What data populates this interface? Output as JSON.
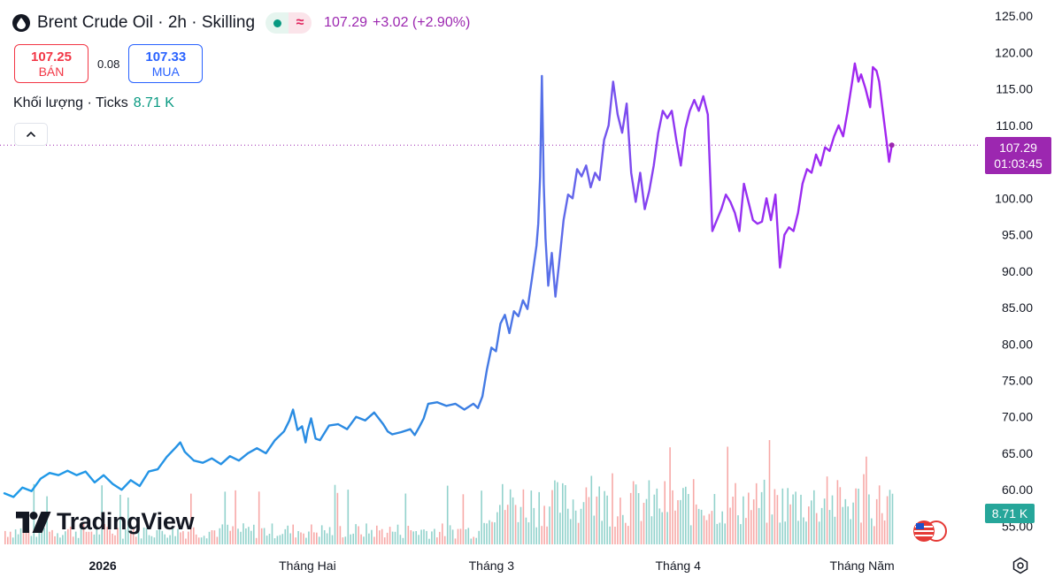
{
  "header": {
    "title": "Brent Crude Oil · 2h · Skilling",
    "status_icon": "market-open-dot",
    "wave_icon": "≈",
    "last": "107.29",
    "change": "+3.02 (+2.90%)"
  },
  "bid_ask": {
    "sell_value": "107.25",
    "sell_label": "BÁN",
    "spread": "0.08",
    "buy_value": "107.33",
    "buy_label": "MUA"
  },
  "volume": {
    "label": "Khối lượng · Ticks",
    "value": "8.71 K"
  },
  "logo": {
    "text": "TradingView"
  },
  "price_tag": {
    "price": "107.29",
    "countdown": "01:03:45"
  },
  "vol_tag": {
    "value": "8.71 K"
  },
  "colors": {
    "line_start": "#2196f3",
    "line_end": "#a020f0",
    "up_volume": "#26a69a",
    "down_volume": "#ef5350",
    "last_price": "#9c27b0"
  },
  "chart_data": {
    "type": "line",
    "title": "Brent Crude Oil · 2h · Skilling",
    "ylim": [
      52.5,
      126
    ],
    "y_ticks": [
      "125.00",
      "120.00",
      "115.00",
      "110.00",
      "105.00",
      "100.00",
      "95.00",
      "90.00",
      "85.00",
      "80.00",
      "75.00",
      "70.00",
      "65.00",
      "60.00",
      "55.00"
    ],
    "x_ticks": [
      {
        "label": "2026",
        "t": 0.109
      },
      {
        "label": "Tháng Hai",
        "t": 0.336
      },
      {
        "label": "Tháng 3",
        "t": 0.54
      },
      {
        "label": "Tháng 4",
        "t": 0.747
      },
      {
        "label": "Tháng Năm",
        "t": 0.951
      }
    ],
    "series": [
      {
        "points": [
          [
            0.0,
            59.5
          ],
          [
            0.01,
            59.0
          ],
          [
            0.02,
            60.3
          ],
          [
            0.03,
            59.8
          ],
          [
            0.04,
            61.5
          ],
          [
            0.05,
            62.3
          ],
          [
            0.06,
            62.0
          ],
          [
            0.07,
            62.6
          ],
          [
            0.08,
            62.0
          ],
          [
            0.09,
            62.5
          ],
          [
            0.1,
            61.0
          ],
          [
            0.11,
            62.0
          ],
          [
            0.12,
            60.8
          ],
          [
            0.13,
            60.0
          ],
          [
            0.14,
            61.3
          ],
          [
            0.15,
            60.5
          ],
          [
            0.16,
            62.5
          ],
          [
            0.17,
            62.8
          ],
          [
            0.18,
            64.5
          ],
          [
            0.19,
            65.8
          ],
          [
            0.195,
            66.5
          ],
          [
            0.2,
            65.2
          ],
          [
            0.21,
            64.0
          ],
          [
            0.22,
            63.7
          ],
          [
            0.23,
            64.3
          ],
          [
            0.24,
            63.5
          ],
          [
            0.25,
            64.6
          ],
          [
            0.26,
            64.0
          ],
          [
            0.27,
            65.0
          ],
          [
            0.28,
            65.7
          ],
          [
            0.29,
            65.0
          ],
          [
            0.3,
            66.8
          ],
          [
            0.31,
            68.0
          ],
          [
            0.316,
            69.5
          ],
          [
            0.32,
            71.0
          ],
          [
            0.325,
            68.2
          ],
          [
            0.33,
            68.7
          ],
          [
            0.334,
            66.5
          ],
          [
            0.336,
            68.0
          ],
          [
            0.34,
            69.8
          ],
          [
            0.345,
            67.0
          ],
          [
            0.35,
            66.8
          ],
          [
            0.36,
            68.8
          ],
          [
            0.37,
            69.0
          ],
          [
            0.38,
            68.3
          ],
          [
            0.39,
            70.0
          ],
          [
            0.4,
            69.5
          ],
          [
            0.41,
            70.6
          ],
          [
            0.42,
            69.0
          ],
          [
            0.425,
            68.0
          ],
          [
            0.43,
            67.6
          ],
          [
            0.44,
            67.9
          ],
          [
            0.45,
            68.3
          ],
          [
            0.455,
            67.5
          ],
          [
            0.46,
            68.6
          ],
          [
            0.465,
            69.8
          ],
          [
            0.47,
            71.8
          ],
          [
            0.48,
            72.0
          ],
          [
            0.49,
            71.5
          ],
          [
            0.5,
            71.8
          ],
          [
            0.51,
            71.0
          ],
          [
            0.52,
            71.8
          ],
          [
            0.525,
            71.2
          ],
          [
            0.53,
            72.8
          ],
          [
            0.535,
            76.5
          ],
          [
            0.54,
            79.5
          ],
          [
            0.545,
            79.0
          ],
          [
            0.55,
            82.8
          ],
          [
            0.555,
            84.0
          ],
          [
            0.56,
            81.5
          ],
          [
            0.565,
            84.5
          ],
          [
            0.57,
            83.8
          ],
          [
            0.575,
            86.0
          ],
          [
            0.58,
            84.8
          ],
          [
            0.585,
            89.0
          ],
          [
            0.59,
            93.5
          ],
          [
            0.592,
            96.5
          ],
          [
            0.594,
            103.0
          ],
          [
            0.596,
            116.8
          ],
          [
            0.598,
            102.0
          ],
          [
            0.6,
            94.5
          ],
          [
            0.603,
            88.0
          ],
          [
            0.607,
            92.5
          ],
          [
            0.611,
            86.5
          ],
          [
            0.615,
            91.0
          ],
          [
            0.62,
            97.0
          ],
          [
            0.625,
            100.5
          ],
          [
            0.63,
            100.0
          ],
          [
            0.635,
            104.0
          ],
          [
            0.64,
            103.0
          ],
          [
            0.645,
            104.5
          ],
          [
            0.65,
            101.5
          ],
          [
            0.655,
            103.5
          ],
          [
            0.66,
            102.5
          ],
          [
            0.665,
            108.0
          ],
          [
            0.67,
            110.0
          ],
          [
            0.675,
            116.0
          ],
          [
            0.68,
            111.5
          ],
          [
            0.685,
            109.0
          ],
          [
            0.69,
            113.0
          ],
          [
            0.695,
            103.5
          ],
          [
            0.7,
            99.5
          ],
          [
            0.705,
            103.5
          ],
          [
            0.71,
            98.5
          ],
          [
            0.715,
            101.0
          ],
          [
            0.72,
            104.5
          ],
          [
            0.725,
            109.0
          ],
          [
            0.73,
            112.0
          ],
          [
            0.735,
            111.0
          ],
          [
            0.74,
            112.0
          ],
          [
            0.745,
            108.0
          ],
          [
            0.75,
            104.5
          ],
          [
            0.755,
            109.5
          ],
          [
            0.76,
            112.0
          ],
          [
            0.765,
            113.5
          ],
          [
            0.77,
            112.0
          ],
          [
            0.775,
            114.0
          ],
          [
            0.78,
            111.5
          ],
          [
            0.785,
            95.5
          ],
          [
            0.79,
            97.0
          ],
          [
            0.795,
            98.5
          ],
          [
            0.8,
            100.5
          ],
          [
            0.805,
            99.5
          ],
          [
            0.81,
            98.0
          ],
          [
            0.815,
            95.5
          ],
          [
            0.82,
            102.0
          ],
          [
            0.825,
            99.5
          ],
          [
            0.83,
            97.0
          ],
          [
            0.835,
            96.5
          ],
          [
            0.84,
            96.8
          ],
          [
            0.845,
            100.0
          ],
          [
            0.85,
            97.0
          ],
          [
            0.855,
            100.5
          ],
          [
            0.86,
            90.5
          ],
          [
            0.865,
            95.0
          ],
          [
            0.87,
            96.0
          ],
          [
            0.875,
            95.5
          ],
          [
            0.88,
            98.0
          ],
          [
            0.885,
            102.0
          ],
          [
            0.89,
            104.0
          ],
          [
            0.895,
            103.5
          ],
          [
            0.9,
            106.0
          ],
          [
            0.905,
            104.5
          ],
          [
            0.91,
            107.0
          ],
          [
            0.915,
            106.5
          ],
          [
            0.92,
            108.5
          ],
          [
            0.925,
            110.0
          ],
          [
            0.93,
            108.5
          ],
          [
            0.935,
            112.0
          ],
          [
            0.94,
            116.0
          ],
          [
            0.943,
            118.5
          ],
          [
            0.947,
            116.0
          ],
          [
            0.95,
            117.0
          ],
          [
            0.955,
            115.0
          ],
          [
            0.96,
            112.5
          ],
          [
            0.963,
            118.0
          ],
          [
            0.967,
            117.5
          ],
          [
            0.97,
            116.0
          ],
          [
            0.975,
            111.0
          ],
          [
            0.978,
            108.0
          ],
          [
            0.981,
            105.0
          ],
          [
            0.984,
            107.3
          ]
        ]
      }
    ]
  }
}
